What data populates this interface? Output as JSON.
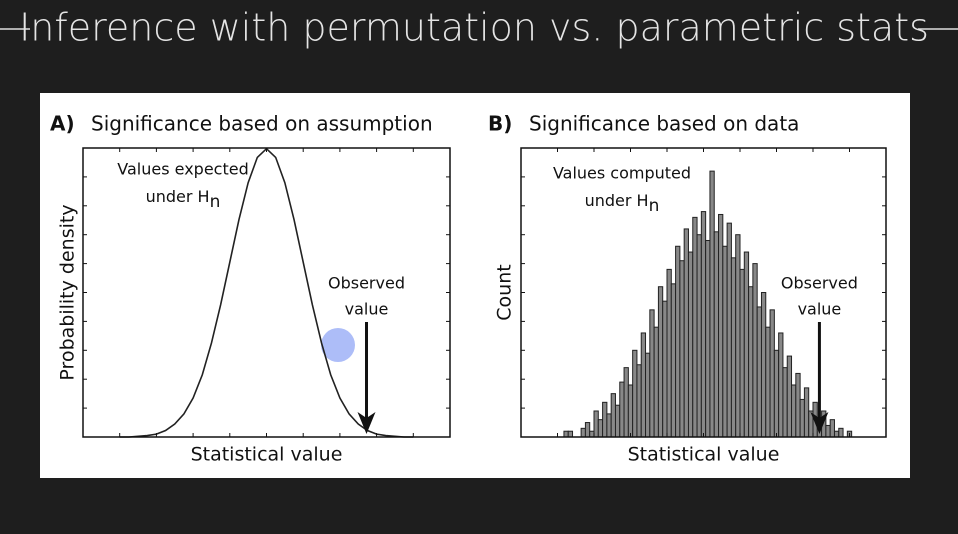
{
  "slide_title": "Inference with permutation vs. parametric stats",
  "chart_data": [
    {
      "type": "line",
      "panel_label": "A)",
      "title": "Significance based on assumption",
      "xlabel": "Statistical value",
      "ylabel": "Probability density",
      "annotations": [
        "Values expected",
        "under H",
        "n",
        "Observed",
        "value"
      ],
      "x": [
        -4,
        -3.75,
        -3.5,
        -3.25,
        -3,
        -2.75,
        -2.5,
        -2.25,
        -2,
        -1.75,
        -1.5,
        -1.25,
        -1,
        -0.75,
        -0.5,
        -0.25,
        0,
        0.25,
        0.5,
        0.75,
        1,
        1.25,
        1.5,
        1.75,
        2,
        2.25,
        2.5,
        2.75,
        3,
        3.25,
        3.5,
        3.75,
        4
      ],
      "values": [
        0,
        0,
        0.001,
        0.002,
        0.004,
        0.009,
        0.018,
        0.032,
        0.054,
        0.086,
        0.13,
        0.183,
        0.242,
        0.301,
        0.352,
        0.387,
        0.399,
        0.387,
        0.352,
        0.301,
        0.242,
        0.183,
        0.13,
        0.086,
        0.054,
        0.032,
        0.018,
        0.009,
        0.004,
        0.002,
        0.001,
        0,
        0
      ],
      "color": "#222222",
      "xlim": [
        -5,
        5
      ],
      "ylim": [
        0,
        0.4
      ]
    },
    {
      "type": "histogram",
      "panel_label": "B)",
      "title": "Significance based on data",
      "xlabel": "Statistical value",
      "ylabel": "Count",
      "annotations": [
        "Values computed",
        "under H",
        "n",
        "Observed",
        "value"
      ],
      "bins": [
        10,
        11,
        12,
        13,
        14,
        15,
        16,
        17,
        18,
        19,
        20,
        21,
        22,
        23,
        24,
        25,
        26,
        27,
        28,
        29,
        30,
        31,
        32,
        33,
        34,
        35,
        36,
        37,
        38,
        39,
        40,
        41,
        42,
        43,
        44,
        45,
        46,
        47,
        48,
        49,
        50,
        51,
        52,
        53,
        54,
        55,
        56,
        57,
        58,
        59,
        60,
        61,
        62,
        63,
        64,
        65,
        66,
        67,
        68,
        69,
        70,
        71,
        72,
        73,
        74,
        75,
        76,
        77
      ],
      "values": [
        2,
        2,
        0,
        0,
        3,
        5,
        2,
        9,
        6,
        12,
        8,
        15,
        11,
        19,
        24,
        18,
        30,
        25,
        36,
        29,
        44,
        38,
        52,
        47,
        58,
        53,
        66,
        61,
        72,
        64,
        76,
        70,
        78,
        68,
        92,
        71,
        77,
        66,
        74,
        62,
        70,
        58,
        64,
        52,
        60,
        45,
        50,
        38,
        44,
        30,
        36,
        24,
        28,
        18,
        22,
        13,
        17,
        9,
        12,
        6,
        9,
        4,
        6,
        2,
        3,
        0,
        2
      ],
      "color": "#555555",
      "xlim": [
        0,
        85
      ],
      "ylim": [
        0,
        100
      ]
    }
  ]
}
